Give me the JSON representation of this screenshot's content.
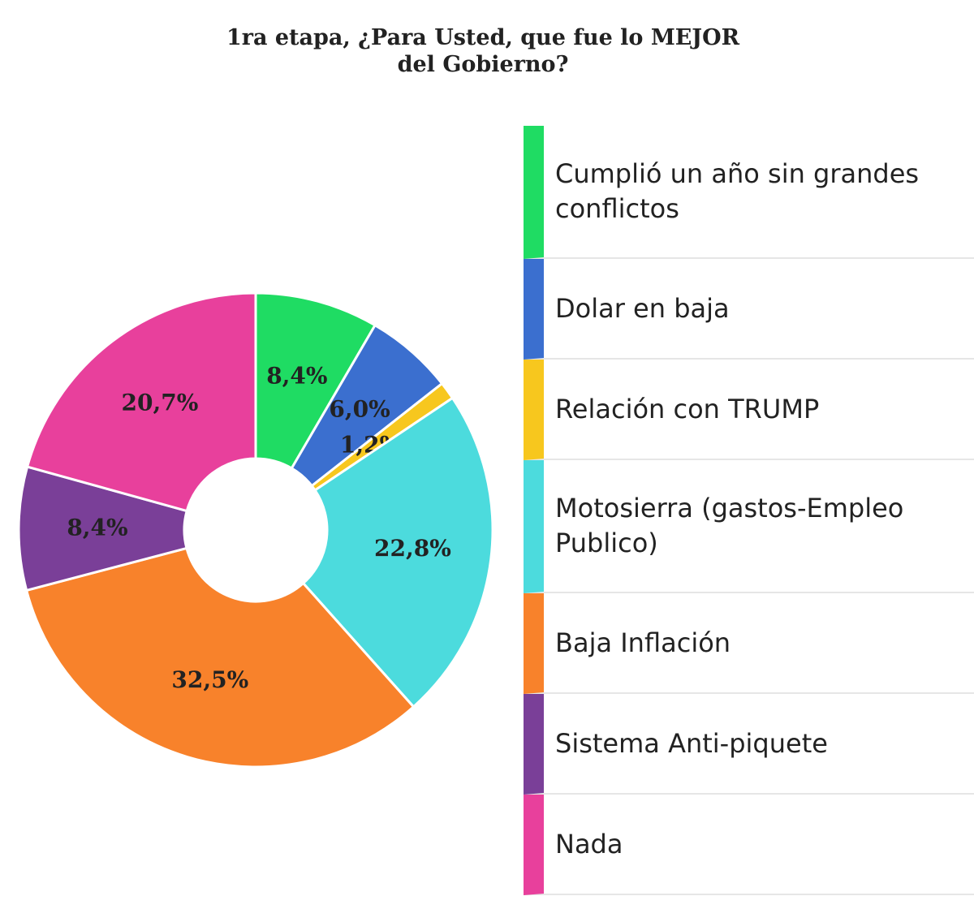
{
  "chart_data": {
    "type": "donut",
    "title": "1ra etapa, ¿Para Usted, que fue lo MEJOR del Gobierno?",
    "categories": [
      "Cumplió un año sin grandes conflictos",
      "Dolar en baja",
      "Relación con TRUMP",
      "Motosierra (gastos-Empleo Publico)",
      "Baja Inflación",
      "Sistema Anti-piquete",
      "Nada"
    ],
    "values": [
      8.4,
      6.0,
      1.2,
      22.8,
      32.5,
      8.4,
      20.7
    ],
    "value_labels": [
      "8,4%",
      "6,0%",
      "1,2%",
      "22,8%",
      "32,5%",
      "8,4%",
      "20,7%"
    ],
    "colors": [
      "#1fdc63",
      "#3b6fcf",
      "#f7c71e",
      "#4cdbdd",
      "#f8822b",
      "#7a3f98",
      "#e8409c"
    ]
  }
}
